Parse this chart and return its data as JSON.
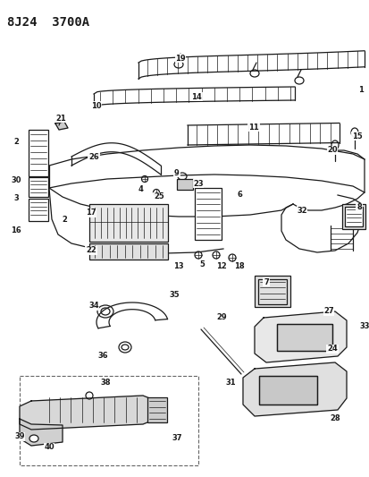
{
  "title": "8J24  3700A",
  "bg_color": "#ffffff",
  "line_color": "#1a1a1a",
  "title_fontsize": 10,
  "label_fontsize": 6,
  "figsize": [
    4.14,
    5.33
  ],
  "dpi": 100
}
